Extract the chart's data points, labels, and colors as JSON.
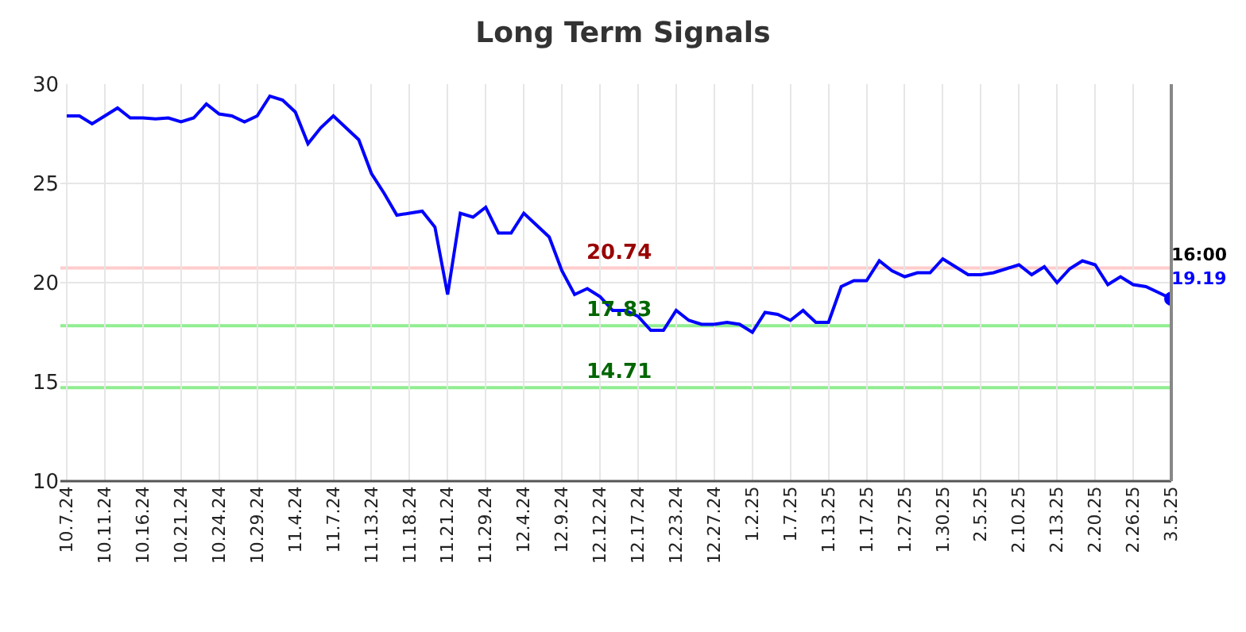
{
  "chart_data": {
    "type": "line",
    "title": "Long Term Signals",
    "categories": [
      "10.7.24",
      null,
      null,
      "10.11.24",
      null,
      null,
      "10.16.24",
      null,
      null,
      "10.21.24",
      null,
      null,
      "10.24.24",
      null,
      null,
      "10.29.24",
      null,
      null,
      "11.4.24",
      null,
      null,
      "11.7.24",
      null,
      null,
      "11.13.24",
      null,
      null,
      "11.18.24",
      null,
      null,
      "11.21.24",
      null,
      null,
      "11.29.24",
      null,
      null,
      "12.4.24",
      null,
      null,
      "12.9.24",
      null,
      null,
      "12.12.24",
      null,
      null,
      "12.17.24",
      null,
      null,
      "12.23.24",
      null,
      null,
      "12.27.24",
      null,
      null,
      "1.2.25",
      null,
      null,
      "1.7.25",
      null,
      null,
      "1.13.25",
      null,
      null,
      "1.17.25",
      null,
      null,
      "1.27.25",
      null,
      null,
      "1.30.25",
      null,
      null,
      "2.5.25",
      null,
      null,
      "2.10.25",
      null,
      null,
      "2.13.25",
      null,
      null,
      "2.20.25",
      null,
      null,
      "2.26.25",
      null,
      null,
      "3.5.25"
    ],
    "series": [
      {
        "color": "#0000ff",
        "values": [
          28.4,
          28.4,
          28.0,
          28.4,
          28.8,
          28.3,
          28.3,
          28.25,
          28.3,
          28.1,
          28.3,
          29.0,
          28.5,
          28.4,
          28.1,
          28.4,
          29.4,
          29.2,
          28.6,
          27.0,
          27.8,
          28.4,
          27.8,
          27.2,
          25.5,
          24.5,
          23.4,
          23.5,
          23.6,
          22.8,
          19.4,
          23.5,
          23.3,
          23.8,
          22.5,
          22.5,
          23.5,
          22.9,
          22.3,
          20.6,
          19.4,
          19.7,
          19.3,
          18.6,
          18.6,
          18.3,
          17.6,
          17.6,
          18.6,
          18.1,
          17.9,
          17.9,
          18.0,
          17.9,
          17.5,
          18.5,
          18.4,
          18.1,
          18.6,
          18.0,
          18.0,
          19.8,
          20.1,
          20.1,
          21.1,
          20.6,
          20.3,
          20.5,
          20.5,
          21.2,
          20.8,
          20.4,
          20.4,
          20.5,
          20.7,
          20.9,
          20.4,
          20.8,
          20.0,
          20.7,
          21.1,
          20.9,
          19.9,
          20.3,
          19.9,
          19.8,
          19.5,
          19.19
        ]
      }
    ],
    "ylim": [
      10,
      30
    ],
    "yticks": [
      10,
      15,
      20,
      25,
      30
    ],
    "grid": true,
    "marker": "none",
    "line_style": "solid",
    "ref_lines": [
      {
        "axis": "y",
        "value": 20.74,
        "label": "20.74",
        "color": "#ffcccc"
      },
      {
        "axis": "y",
        "value": 17.83,
        "label": "17.83",
        "color": "#90ee90"
      },
      {
        "axis": "y",
        "value": 14.71,
        "label": "14.71",
        "color": "#90ee90"
      }
    ],
    "annotations": [
      {
        "text": "16:00",
        "x": "3.5.25",
        "y": 19.19
      },
      {
        "text": "19.19",
        "x": "3.5.25",
        "y": 19.19
      }
    ]
  }
}
